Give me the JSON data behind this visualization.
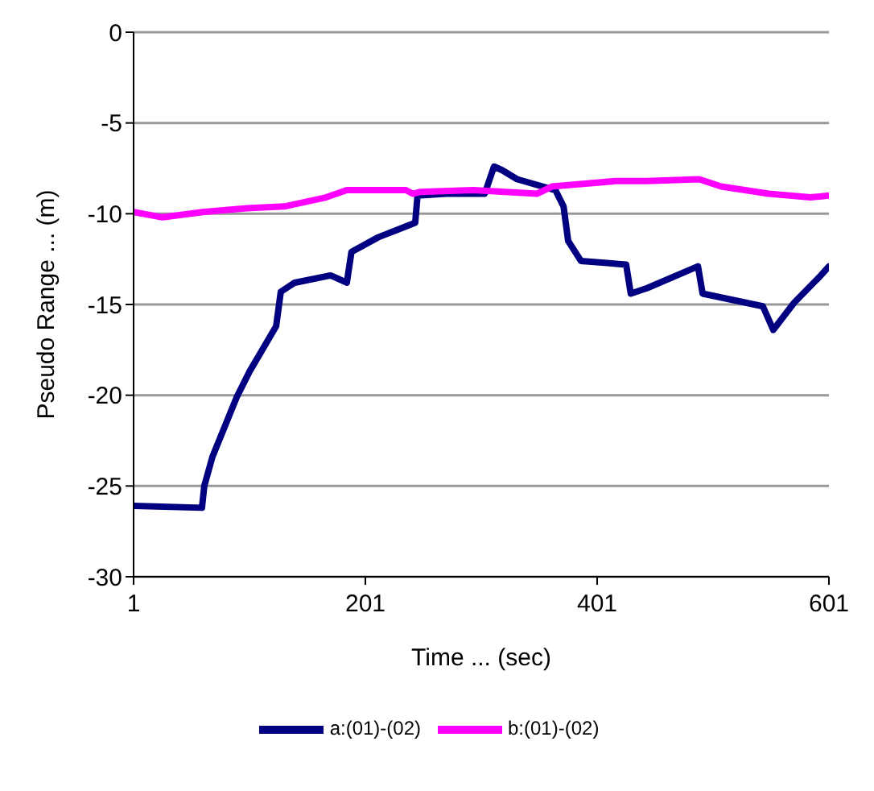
{
  "chart_data": {
    "type": "line",
    "xlabel": "Time ... (sec)",
    "ylabel": "Pseudo Range ... (m)",
    "xlim": [
      1,
      601
    ],
    "xticks": [
      1,
      201,
      401,
      601
    ],
    "ylim": [
      -30,
      0
    ],
    "yticks": [
      -30,
      -25,
      -20,
      -15,
      -10,
      -5,
      0
    ],
    "grid": "y",
    "legend": "bottom",
    "marker": "none",
    "line_style": "solid",
    "series": [
      {
        "name": "a:(01)-(02)",
        "color": "#000080",
        "x": [
          1,
          60,
          62,
          69,
          90,
          101,
          124,
          128,
          140,
          171,
          185,
          189,
          212,
          244,
          246,
          271,
          304,
          312,
          319,
          332,
          365,
          372,
          376,
          387,
          426,
          430,
          444,
          488,
          492,
          544,
          553,
          571,
          594,
          601
        ],
        "values": [
          -26.1,
          -26.2,
          -25.0,
          -23.4,
          -20.1,
          -18.7,
          -16.2,
          -14.3,
          -13.8,
          -13.4,
          -13.8,
          -12.1,
          -11.3,
          -10.5,
          -9.0,
          -8.9,
          -8.9,
          -7.4,
          -7.6,
          -8.1,
          -8.7,
          -9.6,
          -11.5,
          -12.6,
          -12.8,
          -14.4,
          -14.1,
          -12.9,
          -14.4,
          -15.1,
          -16.4,
          -14.9,
          -13.4,
          -12.9
        ]
      },
      {
        "name": "b:(01)-(02)",
        "color": "#ff00ff",
        "x": [
          1,
          26,
          62,
          99,
          131,
          167,
          185,
          236,
          242,
          248,
          294,
          349,
          362,
          417,
          444,
          489,
          508,
          549,
          585,
          601
        ],
        "values": [
          -9.9,
          -10.2,
          -9.9,
          -9.7,
          -9.6,
          -9.1,
          -8.7,
          -8.7,
          -8.9,
          -8.8,
          -8.7,
          -8.9,
          -8.5,
          -8.2,
          -8.2,
          -8.1,
          -8.5,
          -8.9,
          -9.1,
          -9.0
        ]
      }
    ]
  }
}
